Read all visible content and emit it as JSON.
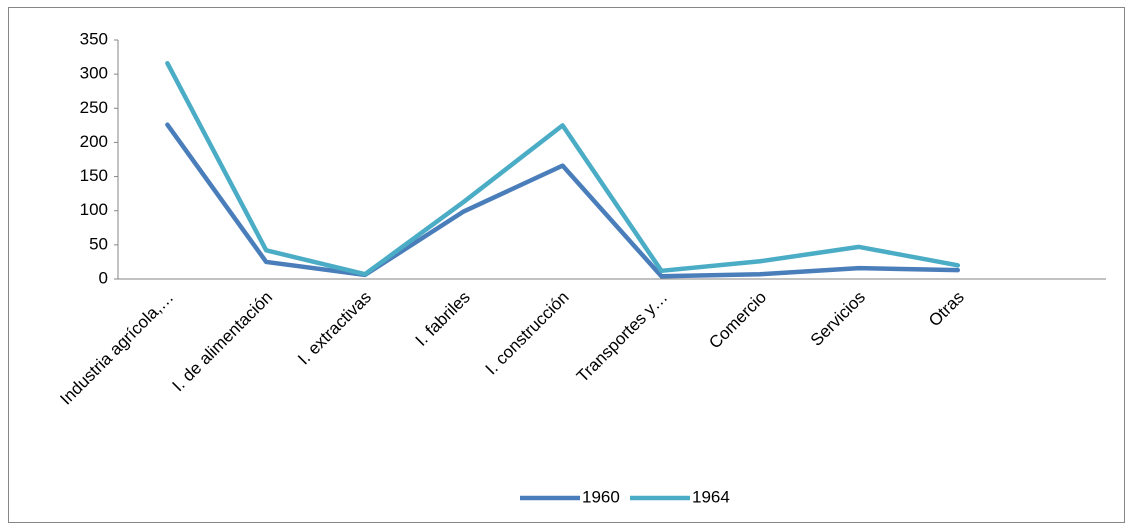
{
  "chart_data": {
    "type": "line",
    "categories": [
      "Industria agrícola,…",
      "I. de alimentación",
      "I. extractivas",
      "I. fabriles",
      "I. construcción",
      "Transportes y…",
      "Comercio",
      "Servicios",
      "Otras",
      null
    ],
    "series": [
      {
        "name": "1960",
        "color": "#4a7ebb",
        "values": [
          226,
          25,
          6,
          99,
          166,
          4,
          7,
          16,
          13,
          null
        ]
      },
      {
        "name": "1964",
        "color": "#4bacc6",
        "values": [
          316,
          42,
          7,
          113,
          225,
          12,
          26,
          47,
          20,
          null
        ]
      }
    ],
    "ylim": [
      0,
      350
    ],
    "yticks": [
      0,
      50,
      100,
      150,
      200,
      250,
      300,
      350
    ],
    "legend": "bottom"
  }
}
